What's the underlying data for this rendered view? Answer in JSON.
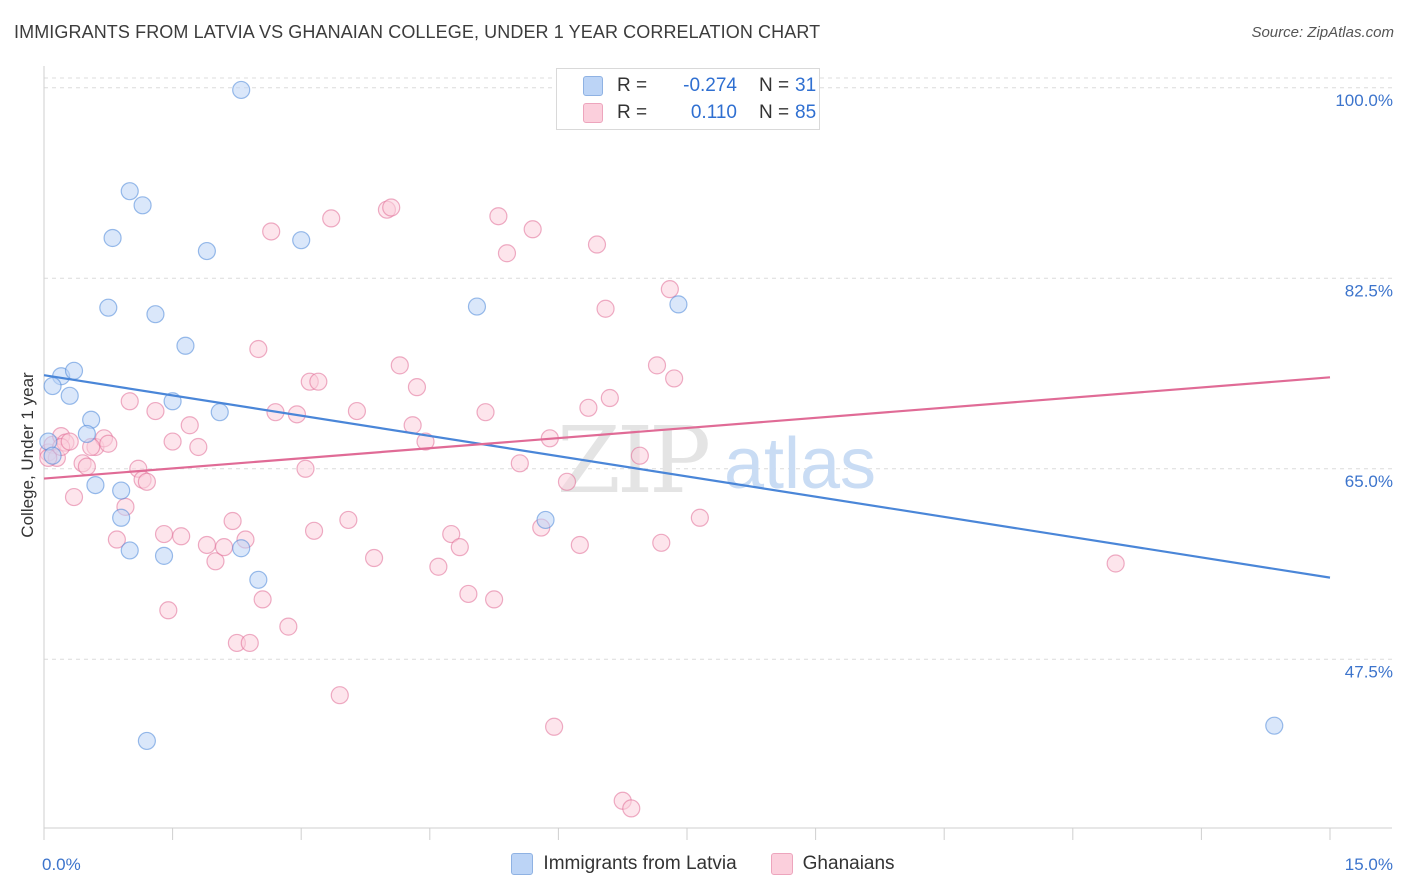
{
  "title": "IMMIGRANTS FROM LATVIA VS GHANAIAN COLLEGE, UNDER 1 YEAR CORRELATION CHART",
  "source": "Source: ZipAtlas.com",
  "watermark": {
    "zip": "ZIP",
    "atlas": "atlas"
  },
  "stats": [
    {
      "r_label": "R =",
      "r_value": "-0.274",
      "n_label": "N =",
      "n_value": "31",
      "color": "#4a86d8"
    },
    {
      "r_label": "R =",
      "r_value": "0.110",
      "n_label": "N =",
      "n_value": "85",
      "color": "#e06b96"
    }
  ],
  "chart_data": {
    "type": "scatter",
    "xlabel": "",
    "ylabel": "College, Under 1 year",
    "xlim": [
      0,
      15
    ],
    "ylim": [
      32,
      102
    ],
    "x_tick_labels": [
      "0.0%",
      "15.0%"
    ],
    "y_ticks": [
      47.5,
      65.0,
      82.5,
      100.0
    ],
    "y_tick_labels": [
      "47.5%",
      "65.0%",
      "82.5%",
      "100.0%"
    ],
    "grid": "horizontal dashed",
    "legend_placement": "bottom-center",
    "series": [
      {
        "name": "Immigrants from Latvia",
        "color": "#4a86d8",
        "fill": "#bcd4f6",
        "trend": {
          "x": [
            0,
            15
          ],
          "y": [
            73.6,
            55.0
          ]
        },
        "points": [
          [
            0.05,
            67.5
          ],
          [
            0.2,
            73.5
          ],
          [
            0.1,
            72.6
          ],
          [
            0.35,
            74.0
          ],
          [
            0.3,
            71.7
          ],
          [
            0.55,
            69.5
          ],
          [
            0.5,
            68.2
          ],
          [
            0.6,
            63.5
          ],
          [
            0.75,
            79.8
          ],
          [
            0.8,
            86.2
          ],
          [
            0.9,
            63.0
          ],
          [
            0.9,
            60.5
          ],
          [
            1.0,
            57.5
          ],
          [
            1.0,
            90.5
          ],
          [
            1.15,
            89.2
          ],
          [
            1.2,
            40.0
          ],
          [
            1.3,
            79.2
          ],
          [
            1.4,
            57.0
          ],
          [
            1.5,
            71.2
          ],
          [
            1.65,
            76.3
          ],
          [
            1.9,
            85.0
          ],
          [
            2.05,
            70.2
          ],
          [
            2.3,
            99.8
          ],
          [
            2.3,
            57.7
          ],
          [
            2.5,
            54.8
          ],
          [
            3.0,
            86.0
          ],
          [
            5.05,
            79.9
          ],
          [
            5.85,
            60.3
          ],
          [
            7.4,
            80.1
          ],
          [
            14.35,
            41.4
          ],
          [
            0.1,
            66.2
          ]
        ]
      },
      {
        "name": "Ghanaians",
        "color": "#e06b96",
        "fill": "#fbcfdc",
        "trend": {
          "x": [
            0,
            15
          ],
          "y": [
            64.1,
            73.4
          ]
        },
        "points": [
          [
            0.05,
            66.5
          ],
          [
            0.1,
            67.2
          ],
          [
            0.15,
            66.0
          ],
          [
            0.2,
            68.0
          ],
          [
            0.25,
            67.4
          ],
          [
            0.35,
            62.4
          ],
          [
            0.45,
            65.5
          ],
          [
            0.5,
            65.2
          ],
          [
            0.6,
            67.0
          ],
          [
            0.7,
            67.8
          ],
          [
            0.75,
            67.3
          ],
          [
            0.85,
            58.5
          ],
          [
            0.95,
            61.5
          ],
          [
            1.0,
            71.2
          ],
          [
            1.1,
            65.0
          ],
          [
            1.15,
            64.0
          ],
          [
            1.2,
            63.8
          ],
          [
            1.3,
            70.3
          ],
          [
            1.4,
            59.0
          ],
          [
            1.45,
            52.0
          ],
          [
            1.5,
            67.5
          ],
          [
            1.6,
            58.8
          ],
          [
            1.7,
            69.0
          ],
          [
            1.8,
            67.0
          ],
          [
            1.9,
            58.0
          ],
          [
            2.0,
            56.5
          ],
          [
            2.1,
            57.8
          ],
          [
            2.2,
            60.2
          ],
          [
            2.25,
            49.0
          ],
          [
            2.35,
            58.5
          ],
          [
            2.4,
            49.0
          ],
          [
            2.5,
            76.0
          ],
          [
            2.55,
            53.0
          ],
          [
            2.65,
            86.8
          ],
          [
            2.7,
            70.2
          ],
          [
            2.85,
            50.5
          ],
          [
            2.95,
            70.0
          ],
          [
            3.05,
            65.0
          ],
          [
            3.1,
            73.0
          ],
          [
            3.15,
            59.3
          ],
          [
            3.2,
            73.0
          ],
          [
            3.35,
            88.0
          ],
          [
            3.45,
            44.2
          ],
          [
            3.55,
            60.3
          ],
          [
            3.65,
            70.3
          ],
          [
            3.85,
            56.8
          ],
          [
            4.0,
            88.8
          ],
          [
            4.05,
            89.0
          ],
          [
            4.15,
            74.5
          ],
          [
            4.3,
            69.0
          ],
          [
            4.35,
            72.5
          ],
          [
            4.45,
            67.5
          ],
          [
            4.6,
            56.0
          ],
          [
            4.75,
            59.0
          ],
          [
            4.85,
            57.8
          ],
          [
            4.95,
            53.5
          ],
          [
            5.15,
            70.2
          ],
          [
            5.25,
            53.0
          ],
          [
            5.3,
            88.2
          ],
          [
            5.4,
            84.8
          ],
          [
            5.55,
            65.5
          ],
          [
            5.7,
            87.0
          ],
          [
            5.8,
            59.6
          ],
          [
            5.9,
            67.8
          ],
          [
            5.95,
            41.3
          ],
          [
            6.1,
            63.8
          ],
          [
            6.25,
            58.0
          ],
          [
            6.35,
            70.6
          ],
          [
            6.45,
            85.6
          ],
          [
            6.55,
            79.7
          ],
          [
            6.6,
            71.5
          ],
          [
            6.75,
            34.5
          ],
          [
            6.85,
            33.8
          ],
          [
            6.95,
            66.2
          ],
          [
            7.05,
            98.2
          ],
          [
            7.15,
            74.5
          ],
          [
            7.2,
            58.2
          ],
          [
            7.3,
            81.5
          ],
          [
            7.35,
            73.3
          ],
          [
            7.65,
            60.5
          ],
          [
            12.5,
            56.3
          ],
          [
            0.05,
            66.0
          ],
          [
            0.2,
            67.0
          ],
          [
            0.3,
            67.5
          ],
          [
            0.55,
            67.0
          ]
        ]
      }
    ]
  }
}
